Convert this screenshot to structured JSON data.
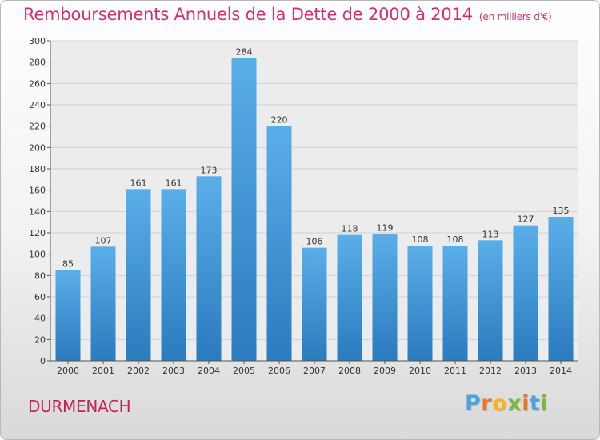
{
  "title": "Remboursements Annuels de la Dette de 2000 à 2014",
  "unit": "(en milliers d'€)",
  "city": "DURMENACH",
  "logo": {
    "letters": [
      "P",
      "r",
      "o",
      "x",
      "i",
      "t",
      "i"
    ],
    "colors": [
      "#4aa3df",
      "#e8762c",
      "#f2b526",
      "#7ab840",
      "#e8762c",
      "#4aa3df",
      "#7ab840"
    ]
  },
  "colors": {
    "bar_top": "#5aaee8",
    "bar_bottom": "#2a7bbf",
    "title": "#d0316e"
  },
  "chart_data": {
    "type": "bar",
    "categories": [
      "2000",
      "2001",
      "2002",
      "2003",
      "2004",
      "2005",
      "2006",
      "2007",
      "2008",
      "2009",
      "2010",
      "2011",
      "2012",
      "2013",
      "2014"
    ],
    "values": [
      85,
      107,
      161,
      161,
      173,
      284,
      220,
      106,
      118,
      119,
      108,
      108,
      113,
      127,
      135
    ],
    "ylim": [
      0,
      300
    ],
    "yticks": [
      0,
      20,
      40,
      60,
      80,
      100,
      120,
      140,
      160,
      180,
      200,
      220,
      240,
      260,
      280,
      300
    ],
    "grid": true
  }
}
